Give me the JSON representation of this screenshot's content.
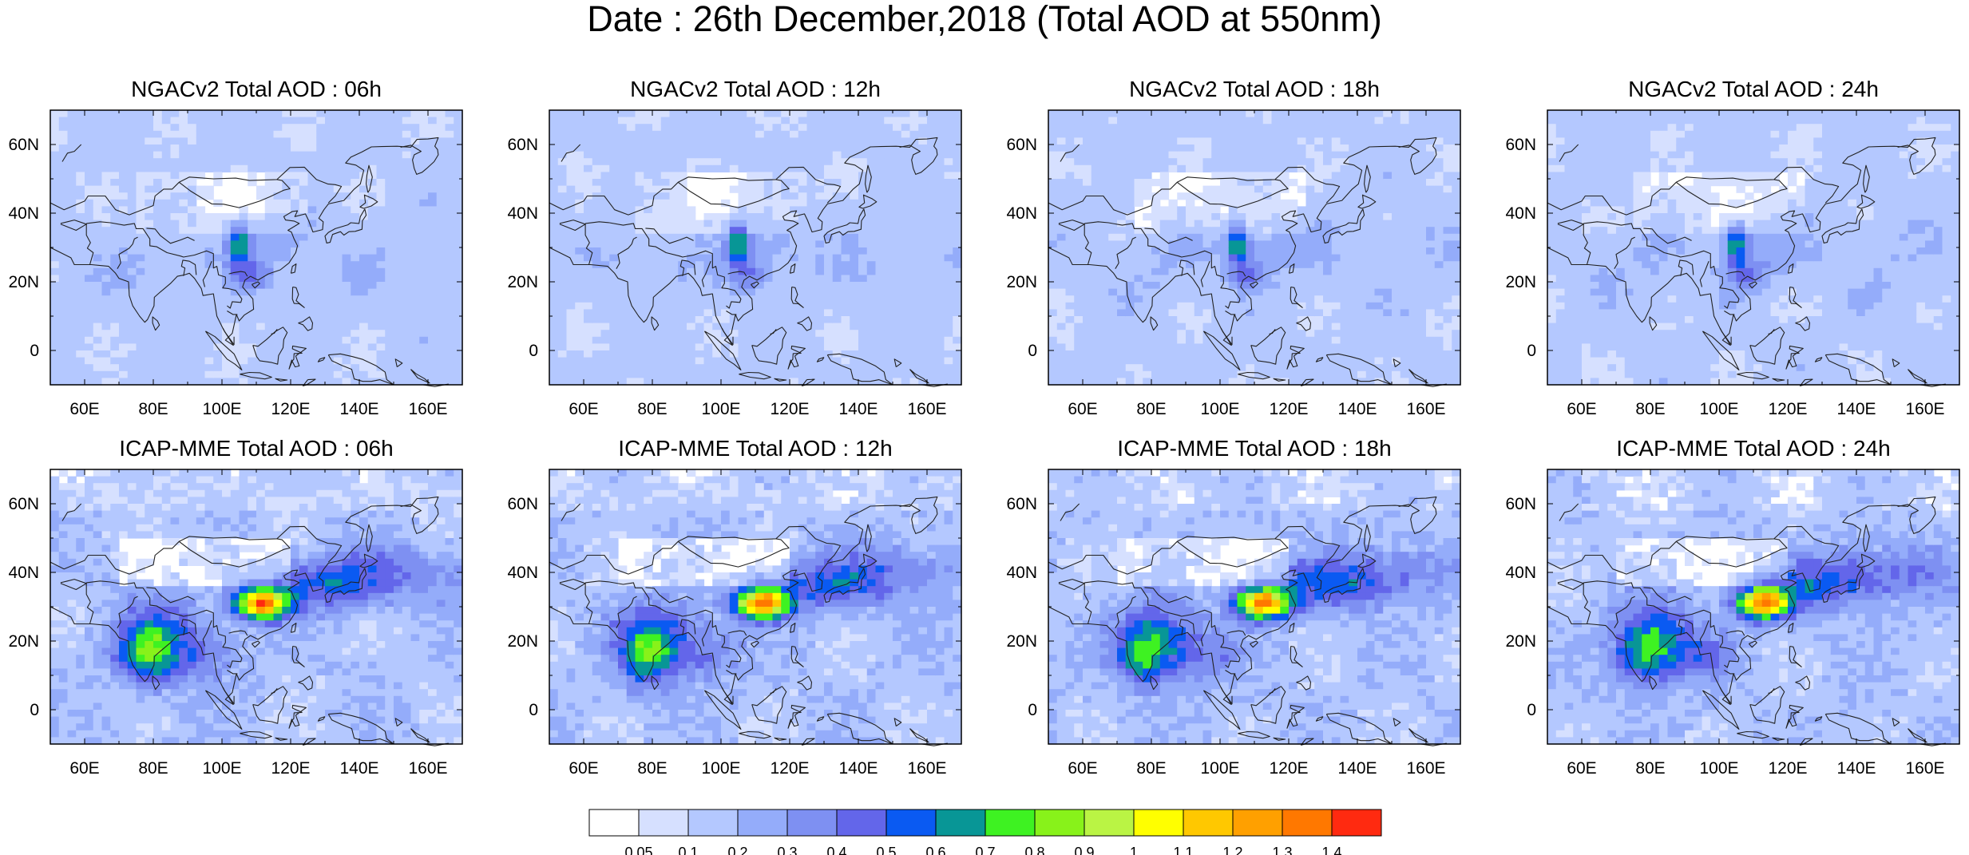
{
  "title": "Date : 26th December,2018 (Total AOD at 550nm)",
  "panels": [
    {
      "title": "NGACv2 Total AOD : 06h",
      "model": "NGACv2",
      "hour": "06h"
    },
    {
      "title": "NGACv2 Total AOD : 12h",
      "model": "NGACv2",
      "hour": "12h"
    },
    {
      "title": "NGACv2 Total AOD : 18h",
      "model": "NGACv2",
      "hour": "18h"
    },
    {
      "title": "NGACv2 Total AOD : 24h",
      "model": "NGACv2",
      "hour": "24h"
    },
    {
      "title": "ICAP-MME Total AOD : 06h",
      "model": "ICAP-MME",
      "hour": "06h"
    },
    {
      "title": "ICAP-MME Total AOD : 12h",
      "model": "ICAP-MME",
      "hour": "12h"
    },
    {
      "title": "ICAP-MME Total AOD : 18h",
      "model": "ICAP-MME",
      "hour": "18h"
    },
    {
      "title": "ICAP-MME Total AOD : 24h",
      "model": "ICAP-MME",
      "hour": "24h"
    }
  ],
  "x_ticks": [
    "60E",
    "80E",
    "100E",
    "120E",
    "140E",
    "160E"
  ],
  "y_ticks": [
    "60N",
    "40N",
    "20N",
    "0"
  ],
  "colorbar": {
    "labels": [
      "0.05",
      "0.1",
      "0.2",
      "0.3",
      "0.4",
      "0.5",
      "0.6",
      "0.7",
      "0.8",
      "0.9",
      "1",
      "1.1",
      "1.2",
      "1.3",
      "1.4"
    ],
    "colors": [
      "#ffffff",
      "#d6e0ff",
      "#b4c8ff",
      "#94acfa",
      "#7e90f2",
      "#6366ea",
      "#0a5af2",
      "#089696",
      "#3ef222",
      "#88f21a",
      "#baf444",
      "#ffff00",
      "#ffc800",
      "#ffa000",
      "#ff7800",
      "#ff2a10"
    ]
  }
}
